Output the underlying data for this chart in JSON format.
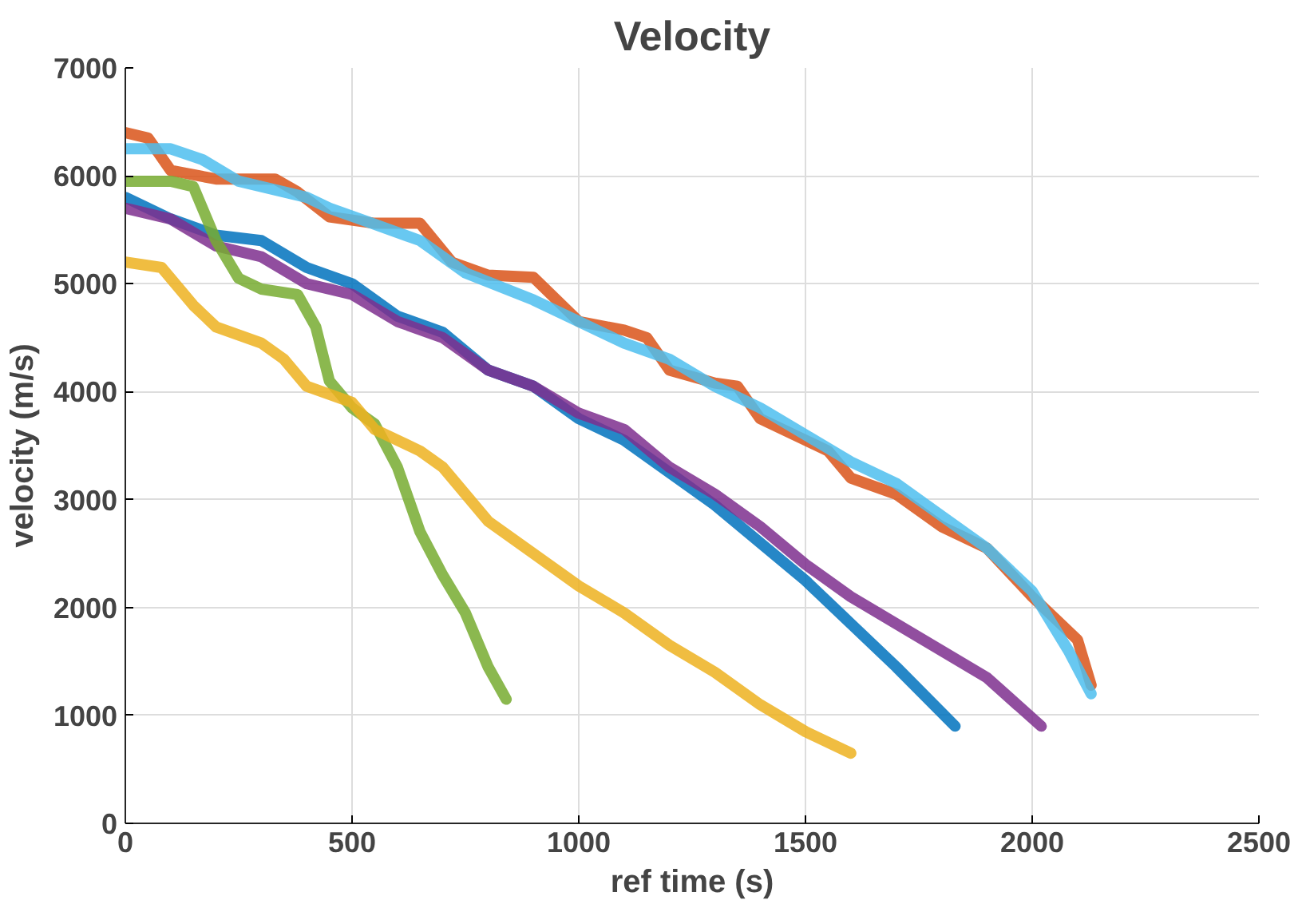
{
  "chart_data": {
    "type": "line",
    "title": "Velocity",
    "xlabel": "ref time (s)",
    "ylabel": "velocity (m/s)",
    "xlim": [
      0,
      2500
    ],
    "xticks": [
      0,
      500,
      1000,
      1500,
      2000,
      2500
    ],
    "ylim": [
      0,
      7000
    ],
    "yticks": [
      0,
      1000,
      2000,
      3000,
      4000,
      5000,
      6000,
      7000
    ],
    "grid": true,
    "line_style": "solid",
    "series": [
      {
        "color": "#d95319",
        "x": [
          0,
          50,
          100,
          200,
          330,
          380,
          450,
          550,
          650,
          720,
          800,
          900,
          1000,
          1100,
          1150,
          1200,
          1300,
          1350,
          1400,
          1500,
          1550,
          1600,
          1700,
          1800,
          1900,
          2000,
          2100,
          2130
        ],
        "values": [
          6400,
          6350,
          6050,
          5970,
          5970,
          5850,
          5620,
          5560,
          5560,
          5200,
          5080,
          5060,
          4650,
          4570,
          4500,
          4200,
          4080,
          4050,
          3750,
          3550,
          3450,
          3200,
          3050,
          2750,
          2550,
          2100,
          1700,
          1280
        ]
      },
      {
        "color": "#4dbeee",
        "x": [
          0,
          100,
          170,
          250,
          350,
          400,
          450,
          550,
          650,
          750,
          900,
          1000,
          1100,
          1200,
          1300,
          1400,
          1500,
          1600,
          1700,
          1800,
          1900,
          2000,
          2080,
          2130
        ],
        "values": [
          6250,
          6250,
          6150,
          5950,
          5850,
          5800,
          5700,
          5550,
          5400,
          5100,
          4850,
          4650,
          4450,
          4300,
          4050,
          3850,
          3600,
          3350,
          3150,
          2850,
          2550,
          2150,
          1600,
          1200
        ]
      },
      {
        "color": "#0072bd",
        "x": [
          0,
          100,
          200,
          300,
          400,
          500,
          600,
          700,
          800,
          900,
          1000,
          1100,
          1200,
          1300,
          1400,
          1500,
          1600,
          1700,
          1830
        ],
        "values": [
          5800,
          5600,
          5450,
          5400,
          5150,
          5000,
          4700,
          4550,
          4200,
          4050,
          3750,
          3550,
          3250,
          2950,
          2600,
          2250,
          1850,
          1450,
          900
        ]
      },
      {
        "color": "#7e2f8e",
        "x": [
          0,
          100,
          200,
          300,
          400,
          500,
          600,
          700,
          800,
          900,
          1000,
          1100,
          1200,
          1300,
          1400,
          1500,
          1600,
          1700,
          1800,
          1900,
          2020
        ],
        "values": [
          5700,
          5600,
          5350,
          5250,
          5000,
          4900,
          4650,
          4500,
          4200,
          4050,
          3800,
          3650,
          3300,
          3050,
          2750,
          2400,
          2100,
          1850,
          1600,
          1350,
          900
        ]
      },
      {
        "color": "#77ac30",
        "x": [
          0,
          100,
          150,
          200,
          250,
          300,
          380,
          420,
          450,
          500,
          550,
          600,
          650,
          700,
          750,
          800,
          840
        ],
        "values": [
          5950,
          5950,
          5900,
          5400,
          5050,
          4950,
          4900,
          4600,
          4100,
          3850,
          3700,
          3300,
          2700,
          2300,
          1950,
          1450,
          1150
        ]
      },
      {
        "color": "#edb120",
        "x": [
          0,
          80,
          150,
          200,
          300,
          350,
          400,
          500,
          550,
          650,
          700,
          800,
          900,
          1000,
          1100,
          1200,
          1300,
          1400,
          1500,
          1600
        ],
        "values": [
          5200,
          5150,
          4800,
          4600,
          4450,
          4300,
          4050,
          3900,
          3650,
          3450,
          3300,
          2800,
          2500,
          2200,
          1950,
          1650,
          1400,
          1100,
          850,
          650
        ]
      }
    ]
  }
}
